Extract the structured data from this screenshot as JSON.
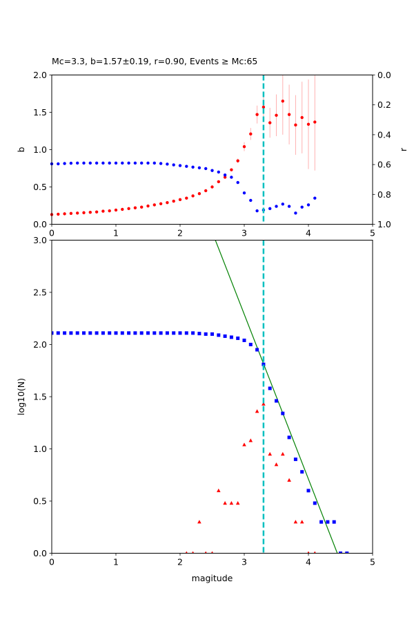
{
  "chart_data": [
    {
      "type": "scatter",
      "title": "Mc=3.3, b=1.57±0.19, r=0.90, Events ≥ Mc:65",
      "xlabel": "",
      "ylabel": "b",
      "ylabel_right": "r",
      "xlim": [
        0,
        5
      ],
      "ylim": [
        0,
        2.0
      ],
      "ylim_right": [
        1.0,
        0.0
      ],
      "xticks": [
        "0",
        "1",
        "2",
        "3",
        "4",
        "5"
      ],
      "yticks": [
        "0.0",
        "0.5",
        "1.0",
        "1.5",
        "2.0"
      ],
      "yticks_right": [
        "0.0",
        "0.2",
        "0.4",
        "0.6",
        "0.8",
        "1.0"
      ],
      "mc_line": 3.3,
      "colors": {
        "b": "#ff0000",
        "r": "#0000ff",
        "err": "#ffb0b0",
        "mc": "#00bfbf"
      },
      "series": [
        {
          "name": "b",
          "axis": "left",
          "x": [
            0.0,
            0.1,
            0.2,
            0.3,
            0.4,
            0.5,
            0.6,
            0.7,
            0.8,
            0.9,
            1.0,
            1.1,
            1.2,
            1.3,
            1.4,
            1.5,
            1.6,
            1.7,
            1.8,
            1.9,
            2.0,
            2.1,
            2.2,
            2.3,
            2.4,
            2.5,
            2.6,
            2.7,
            2.8,
            2.9,
            3.0,
            3.1,
            3.2,
            3.3,
            3.4,
            3.5,
            3.6,
            3.7,
            3.8,
            3.9,
            4.0,
            4.1
          ],
          "y": [
            0.13,
            0.135,
            0.14,
            0.145,
            0.15,
            0.155,
            0.16,
            0.165,
            0.175,
            0.18,
            0.19,
            0.2,
            0.21,
            0.22,
            0.23,
            0.245,
            0.26,
            0.275,
            0.29,
            0.31,
            0.33,
            0.35,
            0.38,
            0.41,
            0.45,
            0.5,
            0.57,
            0.63,
            0.73,
            0.85,
            1.04,
            1.21,
            1.47,
            1.57,
            1.36,
            1.46,
            1.65,
            1.47,
            1.33,
            1.43,
            1.34,
            1.37
          ],
          "err": [
            0,
            0,
            0,
            0,
            0,
            0,
            0,
            0,
            0,
            0,
            0,
            0,
            0,
            0,
            0,
            0,
            0,
            0,
            0,
            0,
            0,
            0,
            0,
            0,
            0,
            0,
            0,
            0,
            0,
            0.03,
            0.06,
            0.08,
            0.12,
            0.19,
            0.2,
            0.28,
            0.45,
            0.4,
            0.4,
            0.48,
            0.6,
            0.65
          ]
        },
        {
          "name": "r",
          "axis": "right",
          "x": [
            0.0,
            0.1,
            0.2,
            0.3,
            0.4,
            0.5,
            0.6,
            0.7,
            0.8,
            0.9,
            1.0,
            1.1,
            1.2,
            1.3,
            1.4,
            1.5,
            1.6,
            1.7,
            1.8,
            1.9,
            2.0,
            2.1,
            2.2,
            2.3,
            2.4,
            2.5,
            2.6,
            2.7,
            2.8,
            2.9,
            3.0,
            3.1,
            3.2,
            3.3,
            3.4,
            3.5,
            3.6,
            3.7,
            3.8,
            3.9,
            4.0,
            4.1
          ],
          "y": [
            0.595,
            0.595,
            0.593,
            0.591,
            0.59,
            0.59,
            0.59,
            0.59,
            0.59,
            0.59,
            0.59,
            0.59,
            0.59,
            0.59,
            0.59,
            0.59,
            0.59,
            0.593,
            0.597,
            0.602,
            0.607,
            0.612,
            0.617,
            0.622,
            0.627,
            0.64,
            0.65,
            0.67,
            0.685,
            0.72,
            0.79,
            0.84,
            0.91,
            0.905,
            0.895,
            0.88,
            0.865,
            0.88,
            0.925,
            0.885,
            0.87,
            0.825
          ]
        }
      ]
    },
    {
      "type": "scatter",
      "title": "",
      "xlabel": "magitude",
      "ylabel": "log10(N)",
      "xlim": [
        0,
        5
      ],
      "ylim": [
        0,
        3.0
      ],
      "xticks": [
        "0",
        "1",
        "2",
        "3",
        "4",
        "5"
      ],
      "yticks": [
        "0.0",
        "0.5",
        "1.0",
        "1.5",
        "2.0",
        "2.5",
        "3.0"
      ],
      "mc_line": 3.3,
      "fit_line": {
        "name": "fit",
        "x": [
          2.55,
          4.45
        ],
        "y": [
          3.0,
          0.0
        ]
      },
      "colors": {
        "cumulative": "#0000ff",
        "noncumulative": "#ff0000",
        "fit": "#008000",
        "mc": "#00bfbf"
      },
      "series": [
        {
          "name": "cumulative",
          "marker": "square",
          "x": [
            0.0,
            0.1,
            0.2,
            0.3,
            0.4,
            0.5,
            0.6,
            0.7,
            0.8,
            0.9,
            1.0,
            1.1,
            1.2,
            1.3,
            1.4,
            1.5,
            1.6,
            1.7,
            1.8,
            1.9,
            2.0,
            2.1,
            2.2,
            2.3,
            2.4,
            2.5,
            2.6,
            2.7,
            2.8,
            2.9,
            3.0,
            3.1,
            3.2,
            3.3,
            3.4,
            3.5,
            3.6,
            3.7,
            3.8,
            3.9,
            4.0,
            4.1,
            4.2,
            4.3,
            4.4,
            4.5,
            4.6
          ],
          "y": [
            2.11,
            2.11,
            2.11,
            2.11,
            2.11,
            2.11,
            2.11,
            2.11,
            2.11,
            2.11,
            2.11,
            2.11,
            2.11,
            2.11,
            2.11,
            2.11,
            2.11,
            2.11,
            2.11,
            2.11,
            2.11,
            2.11,
            2.11,
            2.105,
            2.1,
            2.1,
            2.09,
            2.08,
            2.07,
            2.06,
            2.04,
            2.0,
            1.95,
            1.81,
            1.58,
            1.46,
            1.34,
            1.11,
            0.9,
            0.78,
            0.6,
            0.48,
            0.3,
            0.3,
            0.3,
            0.0,
            0.0
          ]
        },
        {
          "name": "noncumulative",
          "marker": "triangle",
          "x": [
            2.1,
            2.2,
            2.3,
            2.4,
            2.5,
            2.6,
            2.7,
            2.8,
            2.9,
            3.0,
            3.1,
            3.2,
            3.3,
            3.4,
            3.5,
            3.6,
            3.7,
            3.8,
            3.9,
            4.0,
            4.1
          ],
          "y": [
            0.0,
            0.0,
            0.3,
            0.0,
            0.0,
            0.6,
            0.48,
            0.48,
            0.48,
            1.04,
            1.08,
            1.36,
            1.43,
            0.95,
            0.85,
            0.95,
            0.7,
            0.3,
            0.3,
            0.0,
            0.0
          ]
        }
      ]
    }
  ]
}
